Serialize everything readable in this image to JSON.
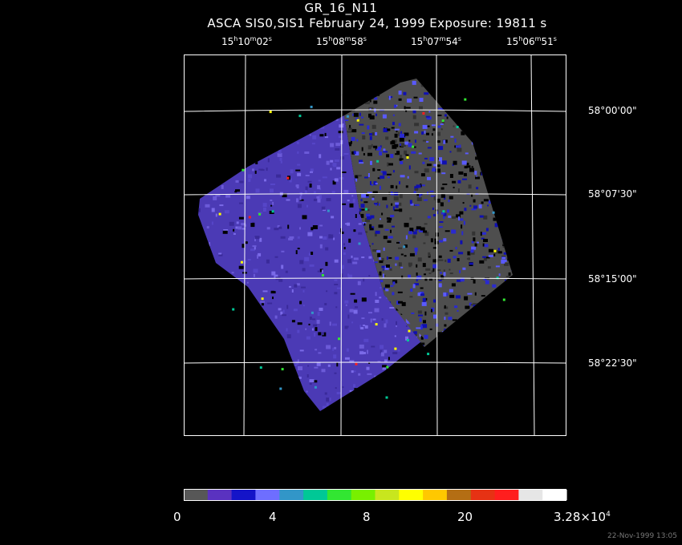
{
  "title": "GR_16_N11",
  "subtitle": "ASCA SIS0,SIS1 February 24, 1999 Exposure: 19811 s",
  "ra_labels": [
    {
      "h": "15",
      "m": "10",
      "s": "02"
    },
    {
      "h": "15",
      "m": "08",
      "s": "58"
    },
    {
      "h": "15",
      "m": "07",
      "s": "54"
    },
    {
      "h": "15",
      "m": "06",
      "s": "51"
    }
  ],
  "dec_labels": [
    "58°00'00\"",
    "58°07'30\"",
    "58°15'00\"",
    "58°22'30\""
  ],
  "colorbar": {
    "colors": [
      "#575757",
      "#5a32c0",
      "#1414c8",
      "#6e6eff",
      "#3296c8",
      "#00c896",
      "#32e632",
      "#78f000",
      "#c8e61e",
      "#ffff00",
      "#ffc800",
      "#b46e14",
      "#e63214",
      "#ff1e1e",
      "#e6e6e6",
      "#ffffff"
    ],
    "labels": {
      "l0": "0",
      "l1": "4",
      "l2": "8",
      "l3": "20",
      "l4_mant": "3.28×10",
      "l4_exp": "4"
    }
  },
  "timestamp": "22-Nov-1999 13:05"
}
